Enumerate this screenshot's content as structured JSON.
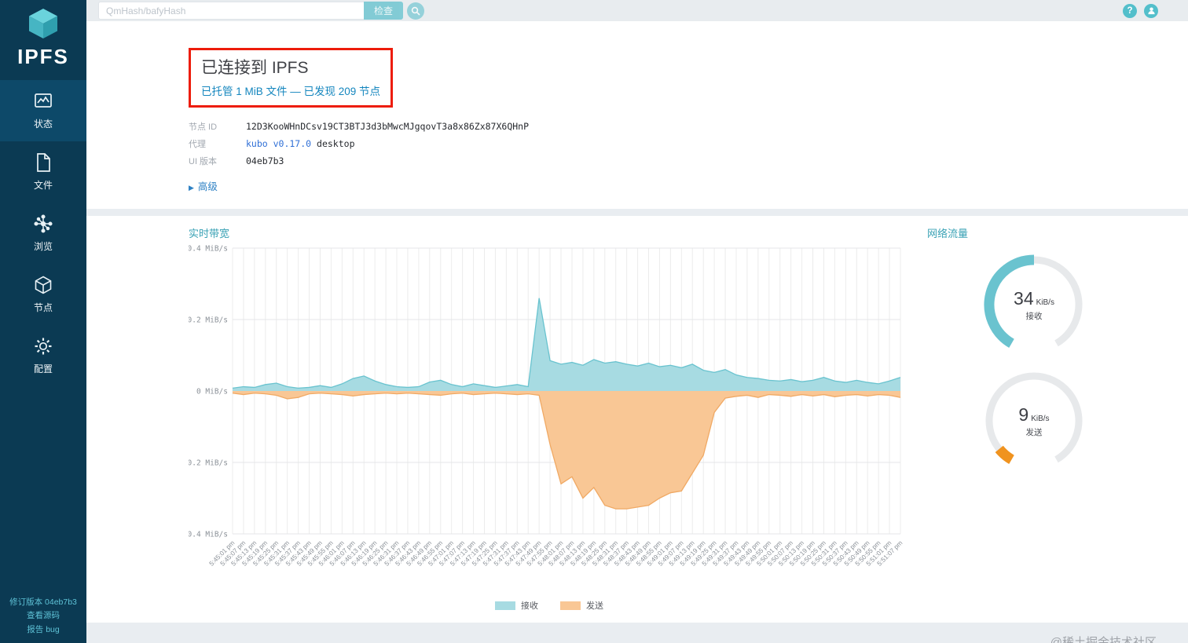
{
  "topbar": {
    "search_placeholder": "QmHash/bafyHash",
    "inspect_label": "检查",
    "help_glyph": "?"
  },
  "sidebar": {
    "logo_text": "IPFS",
    "items": [
      {
        "label": "状态",
        "active": true
      },
      {
        "label": "文件",
        "active": false
      },
      {
        "label": "浏览",
        "active": false
      },
      {
        "label": "节点",
        "active": false
      },
      {
        "label": "配置",
        "active": false
      }
    ],
    "footer": [
      "修订版本 04eb7b3",
      "查看源码",
      "报告 bug"
    ]
  },
  "status": {
    "title": "已连接到 IPFS",
    "subtitle": "已托管 1 MiB 文件 — 已发现 209 节点",
    "fields": [
      {
        "label": "节点 ID",
        "value": "12D3KooWHnDCsv19CT3BTJ3d3bMwcMJgqovT3a8x86Zx87X6QHnP"
      },
      {
        "label": "代理",
        "link": "kubo v0.17.0",
        "suffix": "desktop"
      },
      {
        "label": "UI 版本",
        "value": "04eb7b3"
      }
    ],
    "advanced": "高级",
    "advanced_arrow": "▶"
  },
  "traffic": {
    "title": "网络流量",
    "gauges": [
      {
        "value": "34",
        "unit": "KiB/s",
        "label": "接收",
        "fraction": 0.5,
        "color": "#6ac3cf"
      },
      {
        "value": "9",
        "unit": "KiB/s",
        "label": "发送",
        "fraction": 0.07,
        "color": "#f0931f"
      }
    ]
  },
  "watermark": "@稀土掘金技术社区",
  "chart_data": {
    "type": "area",
    "title": "实时带宽",
    "ylabel": "MiB/s",
    "ylim": [
      -0.4,
      0.4
    ],
    "grid": true,
    "legend_position": "bottom",
    "yticks": [
      {
        "v": 0.4,
        "label": "0.4 MiB/s"
      },
      {
        "v": 0.2,
        "label": "0.2 MiB/s"
      },
      {
        "v": 0,
        "label": "0 MiB/s"
      },
      {
        "v": -0.2,
        "label": "-0.2 MiB/s"
      },
      {
        "v": -0.4,
        "label": "-0.4 MiB/s"
      }
    ],
    "x": [
      "5:45:01 pm",
      "5:45:07 pm",
      "5:45:13 pm",
      "5:45:19 pm",
      "5:45:25 pm",
      "5:45:31 pm",
      "5:45:37 pm",
      "5:45:43 pm",
      "5:45:49 pm",
      "5:45:55 pm",
      "5:46:01 pm",
      "5:46:07 pm",
      "5:46:13 pm",
      "5:46:19 pm",
      "5:46:25 pm",
      "5:46:31 pm",
      "5:46:37 pm",
      "5:46:43 pm",
      "5:46:49 pm",
      "5:46:55 pm",
      "5:47:01 pm",
      "5:47:07 pm",
      "5:47:13 pm",
      "5:47:19 pm",
      "5:47:25 pm",
      "5:47:31 pm",
      "5:47:37 pm",
      "5:47:43 pm",
      "5:47:49 pm",
      "5:47:55 pm",
      "5:48:01 pm",
      "5:48:07 pm",
      "5:48:13 pm",
      "5:48:19 pm",
      "5:48:25 pm",
      "5:48:31 pm",
      "5:48:37 pm",
      "5:48:43 pm",
      "5:48:49 pm",
      "5:48:55 pm",
      "5:49:01 pm",
      "5:49:07 pm",
      "5:49:13 pm",
      "5:49:19 pm",
      "5:49:25 pm",
      "5:49:31 pm",
      "5:49:37 pm",
      "5:49:43 pm",
      "5:49:49 pm",
      "5:49:55 pm",
      "5:50:01 pm",
      "5:50:07 pm",
      "5:50:13 pm",
      "5:50:19 pm",
      "5:50:25 pm",
      "5:50:31 pm",
      "5:50:37 pm",
      "5:50:43 pm",
      "5:50:49 pm",
      "5:50:55 pm",
      "5:51:01 pm",
      "5:51:07 pm"
    ],
    "series": [
      {
        "name": "接收",
        "fill": "#a7dbe2",
        "stroke": "#69c3cf",
        "values": [
          0.008,
          0.012,
          0.01,
          0.018,
          0.022,
          0.012,
          0.008,
          0.01,
          0.015,
          0.01,
          0.02,
          0.035,
          0.042,
          0.028,
          0.018,
          0.012,
          0.01,
          0.012,
          0.025,
          0.03,
          0.018,
          0.012,
          0.02,
          0.015,
          0.01,
          0.014,
          0.018,
          0.012,
          0.26,
          0.085,
          0.075,
          0.08,
          0.072,
          0.088,
          0.078,
          0.082,
          0.075,
          0.07,
          0.078,
          0.068,
          0.072,
          0.065,
          0.075,
          0.058,
          0.052,
          0.06,
          0.045,
          0.038,
          0.035,
          0.03,
          0.028,
          0.032,
          0.026,
          0.03,
          0.038,
          0.028,
          0.024,
          0.03,
          0.024,
          0.02,
          0.028,
          0.038
        ]
      },
      {
        "name": "发送",
        "fill": "#f9c795",
        "stroke": "#f0a964",
        "values": [
          -0.006,
          -0.01,
          -0.006,
          -0.008,
          -0.012,
          -0.022,
          -0.018,
          -0.008,
          -0.006,
          -0.008,
          -0.01,
          -0.014,
          -0.01,
          -0.008,
          -0.006,
          -0.008,
          -0.006,
          -0.008,
          -0.01,
          -0.012,
          -0.008,
          -0.006,
          -0.01,
          -0.008,
          -0.006,
          -0.008,
          -0.01,
          -0.008,
          -0.012,
          -0.15,
          -0.26,
          -0.24,
          -0.3,
          -0.27,
          -0.32,
          -0.33,
          -0.33,
          -0.325,
          -0.32,
          -0.3,
          -0.285,
          -0.28,
          -0.23,
          -0.18,
          -0.06,
          -0.02,
          -0.015,
          -0.012,
          -0.018,
          -0.01,
          -0.012,
          -0.015,
          -0.01,
          -0.014,
          -0.01,
          -0.016,
          -0.012,
          -0.01,
          -0.014,
          -0.01,
          -0.012,
          -0.018
        ]
      }
    ]
  }
}
